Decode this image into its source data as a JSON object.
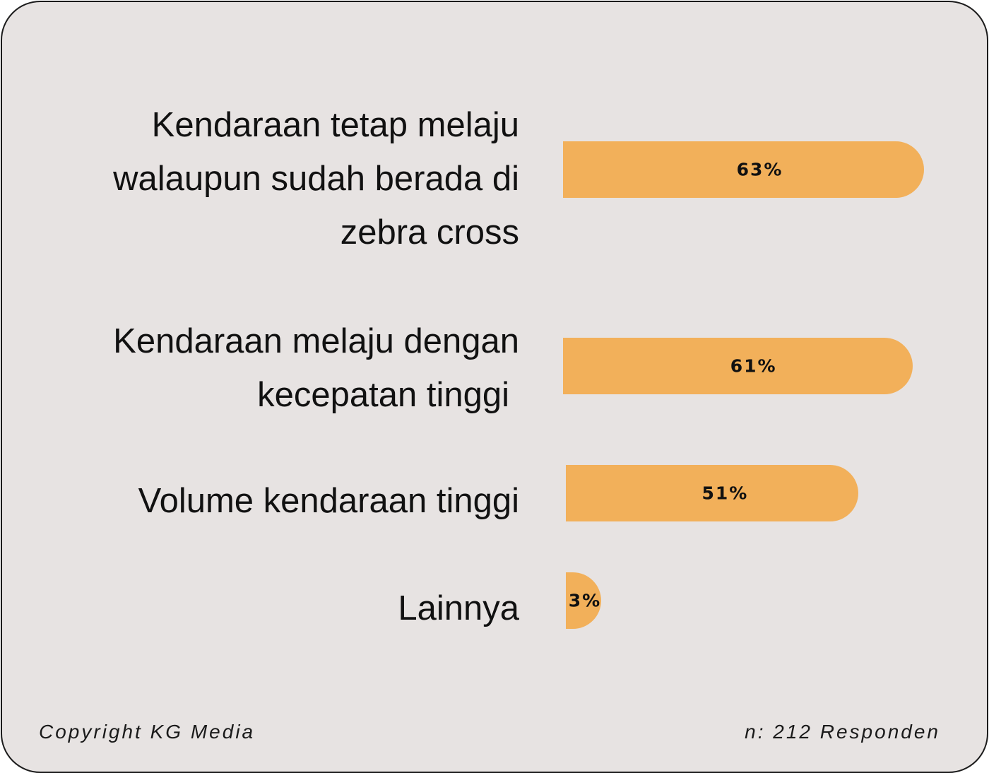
{
  "chart_data": {
    "type": "bar",
    "orientation": "horizontal",
    "categories": [
      "Kendaraan tetap melaju walaupun sudah berada di zebra cross",
      "Kendaraan melaju dengan kecepatan tinggi",
      "Volume kendaraan tinggi",
      "Lainnya"
    ],
    "category_lines": [
      [
        "Kendaraan tetap melaju",
        "walaupun sudah berada di",
        "zebra cross"
      ],
      [
        "Kendaraan melaju dengan",
        "kecepatan tinggi"
      ],
      [
        "Volume kendaraan tinggi"
      ],
      [
        "Lainnya"
      ]
    ],
    "values": [
      63,
      61,
      51,
      3
    ],
    "value_labels": [
      "63%",
      "61%",
      "51%",
      "3%"
    ],
    "unit": "%",
    "bar_color": "#f2b05a",
    "grid": false,
    "legend": false
  },
  "footer": {
    "copyright": "Copyright KG Media",
    "sample": "n: 212 Responden"
  },
  "colors": {
    "background": "#e7e3e2",
    "border": "#1c1c1c",
    "text": "#111111"
  }
}
